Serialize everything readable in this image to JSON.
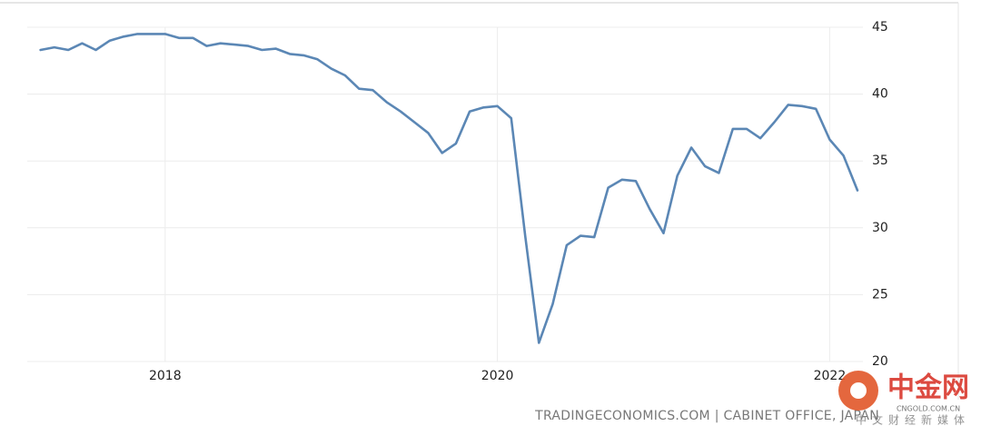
{
  "chart_data": {
    "type": "line",
    "source": "TRADINGECONOMICS.COM | CABINET OFFICE, JAPAN",
    "watermark": {
      "name": "中金网",
      "site": "CNGOLD.COM.CN",
      "slogan": "中文财经新媒体"
    },
    "x": [
      2017.25,
      2017.333,
      2017.417,
      2017.5,
      2017.583,
      2017.667,
      2017.75,
      2017.833,
      2017.917,
      2018.0,
      2018.083,
      2018.167,
      2018.25,
      2018.333,
      2018.417,
      2018.5,
      2018.583,
      2018.667,
      2018.75,
      2018.833,
      2018.917,
      2019.0,
      2019.083,
      2019.167,
      2019.25,
      2019.333,
      2019.417,
      2019.5,
      2019.583,
      2019.667,
      2019.75,
      2019.833,
      2019.917,
      2020.0,
      2020.083,
      2020.167,
      2020.25,
      2020.333,
      2020.417,
      2020.5,
      2020.583,
      2020.667,
      2020.75,
      2020.833,
      2020.917,
      2021.0,
      2021.083,
      2021.167,
      2021.25,
      2021.333,
      2021.417,
      2021.5,
      2021.583,
      2021.667,
      2021.75,
      2021.833,
      2021.917,
      2022.0,
      2022.083,
      2022.167
    ],
    "series": [
      {
        "color": "#5b87b5",
        "values": [
          43.3,
          43.5,
          43.3,
          43.8,
          43.3,
          44.0,
          44.3,
          44.5,
          44.5,
          44.5,
          44.2,
          44.2,
          43.6,
          43.8,
          43.7,
          43.6,
          43.3,
          43.4,
          43.0,
          42.9,
          42.6,
          41.9,
          41.4,
          40.4,
          40.3,
          39.4,
          38.7,
          37.9,
          37.1,
          35.6,
          36.3,
          38.7,
          39.0,
          39.1,
          38.2,
          29.4,
          21.4,
          24.3,
          28.7,
          29.4,
          29.3,
          33.0,
          33.6,
          33.5,
          31.4,
          29.6,
          33.9,
          36.0,
          34.6,
          34.1,
          37.4,
          37.4,
          36.7,
          37.9,
          39.2,
          39.1,
          38.9,
          36.6,
          35.4,
          32.8
        ]
      }
    ],
    "xlim": [
      2017.17,
      2022.2
    ],
    "xticks": [
      2018,
      2020,
      2022
    ],
    "ylim": [
      20,
      45
    ],
    "yticks": [
      20,
      25,
      30,
      35,
      40,
      45
    ],
    "grid": true
  }
}
